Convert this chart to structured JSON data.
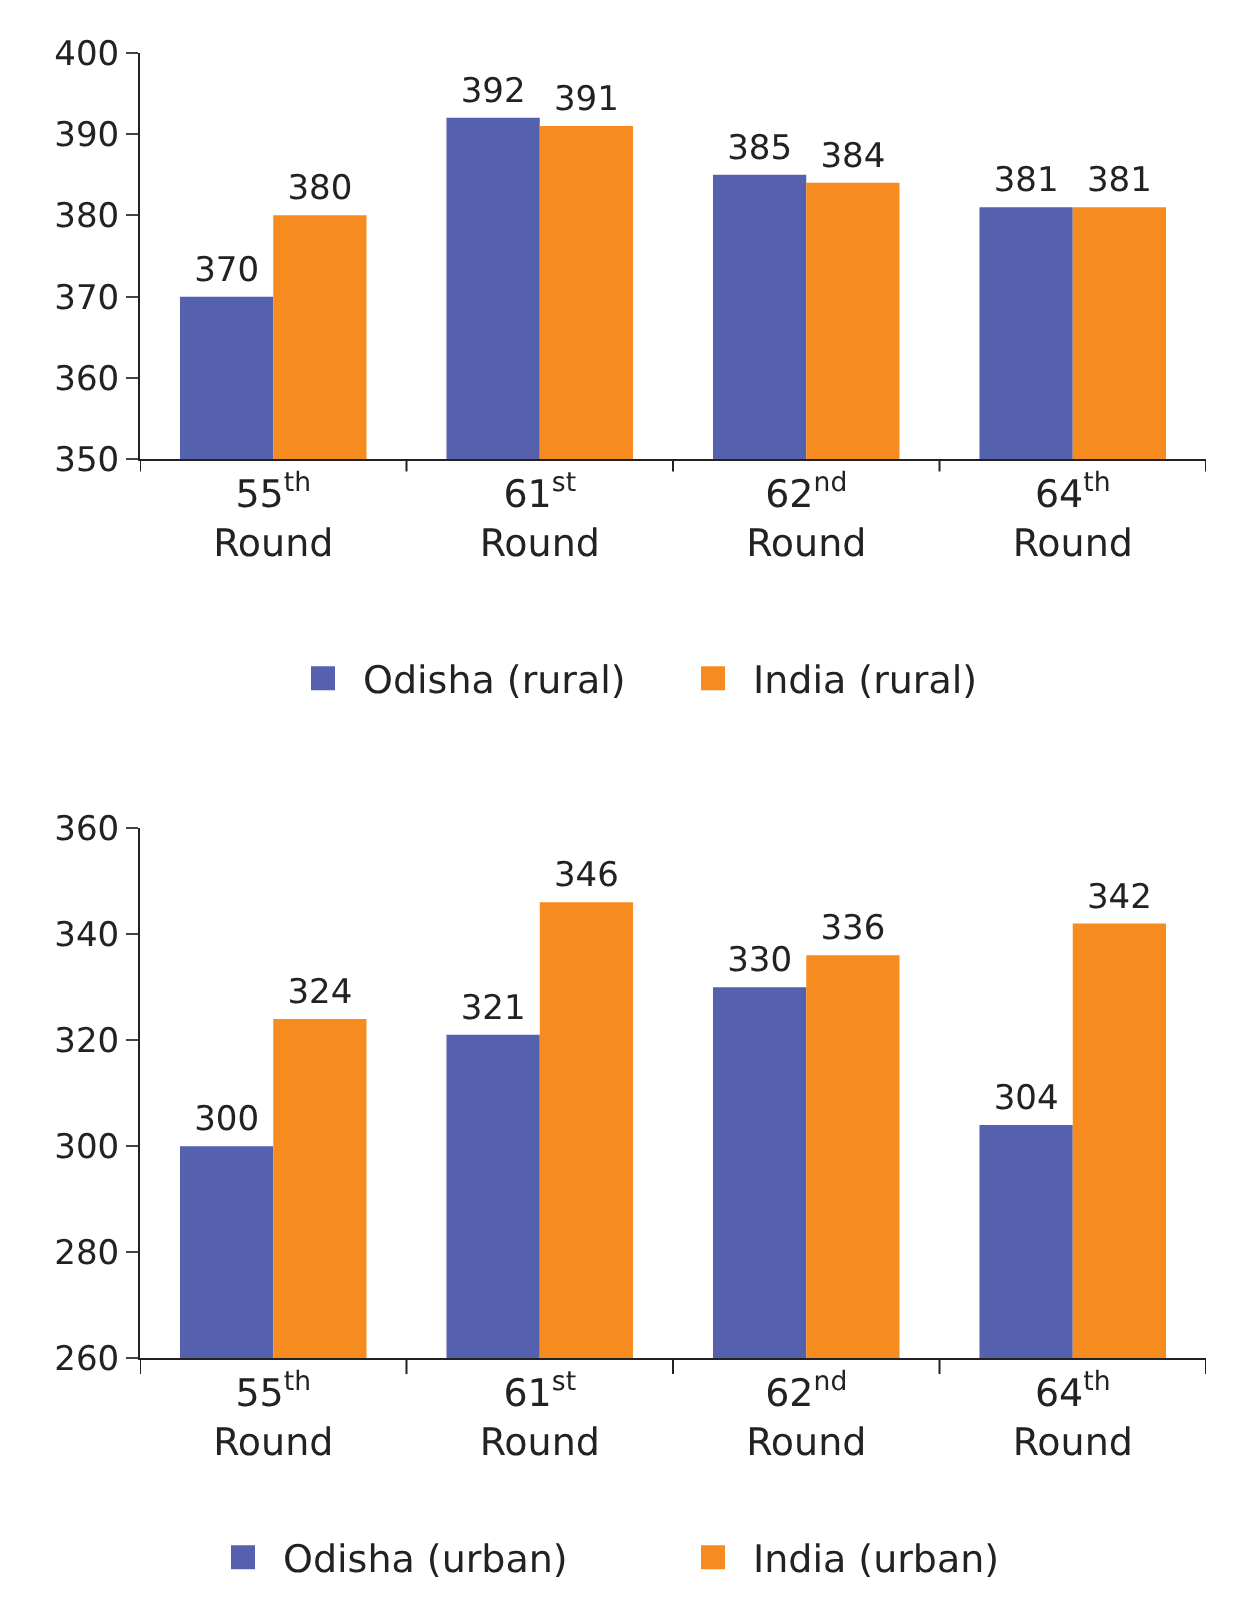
{
  "chart_data": [
    {
      "type": "bar",
      "categories": [
        "55$^{th}$ Round",
        "61$^{st}$ Round",
        "62$^{nd}$ Round",
        "64$^{th}$ Round"
      ],
      "series": [
        {
          "name": "Odisha (rural)",
          "color": "#5561ae",
          "values": [
            370,
            392,
            385,
            381
          ]
        },
        {
          "name": "India (rural)",
          "color": "#f68b1f",
          "values": [
            380,
            391,
            384,
            381
          ]
        }
      ],
      "ylim": [
        350,
        400
      ],
      "yticks": [
        350,
        360,
        370,
        380,
        390,
        400
      ],
      "data_labels": true,
      "legend": "bottom"
    },
    {
      "type": "bar",
      "categories": [
        "55$^{th}$ Round",
        "61$^{st}$ Round",
        "62$^{nd}$ Round",
        "64$^{th}$ Round"
      ],
      "series": [
        {
          "name": "Odisha (urban)",
          "color": "#5561ae",
          "values": [
            300,
            321,
            330,
            304
          ]
        },
        {
          "name": "India (urban)",
          "color": "#f68b1f",
          "values": [
            324,
            346,
            336,
            342
          ]
        }
      ],
      "ylim": [
        260,
        360
      ],
      "yticks": [
        260,
        280,
        300,
        320,
        340,
        360
      ],
      "data_labels": true,
      "legend": "bottom"
    }
  ]
}
